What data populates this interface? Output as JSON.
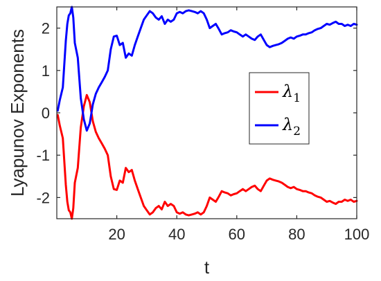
{
  "chart_data": {
    "type": "line",
    "title": "",
    "xlabel": "t",
    "ylabel": "Lyapunov Exponents",
    "xlim": [
      0,
      100
    ],
    "ylim": [
      -2.5,
      2.5
    ],
    "xticks": [
      20,
      40,
      60,
      80,
      100
    ],
    "yticks": [
      -2,
      -1,
      0,
      1,
      2
    ],
    "grid": false,
    "legend_position": "center-right",
    "series": [
      {
        "name": "λ1",
        "label_base": "λ",
        "label_sub": "1",
        "color": "#ff0000",
        "x": [
          0.3,
          1,
          2,
          3,
          3.5,
          4,
          4.5,
          5,
          5.5,
          6,
          7,
          8,
          9,
          10,
          11,
          12,
          13,
          14,
          15,
          16,
          17,
          18,
          19,
          20,
          21,
          22,
          23,
          24,
          25,
          26,
          27,
          28,
          29,
          30,
          31,
          32,
          33,
          34,
          35,
          36,
          37,
          38,
          39,
          40,
          41,
          42,
          43,
          44,
          45,
          46,
          47,
          48,
          49,
          50,
          51,
          52,
          53,
          54,
          55,
          56,
          57,
          58,
          59,
          60,
          61,
          62,
          63,
          64,
          65,
          66,
          67,
          68,
          69,
          70,
          71,
          72,
          73,
          74,
          75,
          76,
          77,
          78,
          79,
          80,
          81,
          82,
          83,
          84,
          85,
          86,
          87,
          88,
          89,
          90,
          91,
          92,
          93,
          94,
          95,
          96,
          97,
          98,
          99,
          100
        ],
        "y": [
          -0.05,
          -0.3,
          -0.6,
          -1.7,
          -2.1,
          -2.3,
          -2.35,
          -2.5,
          -2.25,
          -1.65,
          -1.3,
          -0.35,
          0.15,
          0.42,
          0.25,
          -0.2,
          -0.45,
          -0.6,
          -0.72,
          -0.85,
          -1.0,
          -1.5,
          -1.8,
          -1.82,
          -1.6,
          -1.65,
          -1.3,
          -1.4,
          -1.35,
          -1.6,
          -1.8,
          -2.0,
          -2.2,
          -2.3,
          -2.4,
          -2.35,
          -2.25,
          -2.2,
          -2.28,
          -2.1,
          -2.2,
          -2.15,
          -2.2,
          -2.35,
          -2.38,
          -2.35,
          -2.4,
          -2.42,
          -2.4,
          -2.38,
          -2.35,
          -2.4,
          -2.35,
          -2.2,
          -2.0,
          -2.05,
          -2.1,
          -1.98,
          -1.85,
          -1.88,
          -1.9,
          -1.95,
          -1.92,
          -1.9,
          -1.85,
          -1.8,
          -1.85,
          -1.8,
          -1.75,
          -1.72,
          -1.8,
          -1.85,
          -1.72,
          -1.6,
          -1.55,
          -1.58,
          -1.6,
          -1.62,
          -1.65,
          -1.7,
          -1.75,
          -1.78,
          -1.75,
          -1.8,
          -1.82,
          -1.85,
          -1.85,
          -1.88,
          -1.9,
          -1.95,
          -1.98,
          -2.0,
          -2.05,
          -2.1,
          -2.08,
          -2.12,
          -2.15,
          -2.1,
          -2.1,
          -2.05,
          -2.08,
          -2.05,
          -2.1,
          -2.08
        ]
      },
      {
        "name": "λ2",
        "label_base": "λ",
        "label_sub": "2",
        "color": "#0000ff",
        "x": [
          0.3,
          1,
          2,
          3,
          3.5,
          4,
          4.5,
          5,
          5.5,
          6,
          7,
          8,
          9,
          10,
          11,
          12,
          13,
          14,
          15,
          16,
          17,
          18,
          19,
          20,
          21,
          22,
          23,
          24,
          25,
          26,
          27,
          28,
          29,
          30,
          31,
          32,
          33,
          34,
          35,
          36,
          37,
          38,
          39,
          40,
          41,
          42,
          43,
          44,
          45,
          46,
          47,
          48,
          49,
          50,
          51,
          52,
          53,
          54,
          55,
          56,
          57,
          58,
          59,
          60,
          61,
          62,
          63,
          64,
          65,
          66,
          67,
          68,
          69,
          70,
          71,
          72,
          73,
          74,
          75,
          76,
          77,
          78,
          79,
          80,
          81,
          82,
          83,
          84,
          85,
          86,
          87,
          88,
          89,
          90,
          91,
          92,
          93,
          94,
          95,
          96,
          97,
          98,
          99,
          100
        ],
        "y": [
          0.05,
          0.3,
          0.6,
          1.7,
          2.1,
          2.3,
          2.35,
          2.5,
          2.25,
          1.65,
          1.3,
          0.35,
          -0.15,
          -0.42,
          -0.25,
          0.2,
          0.45,
          0.6,
          0.72,
          0.85,
          1.0,
          1.5,
          1.8,
          1.82,
          1.6,
          1.65,
          1.3,
          1.4,
          1.35,
          1.6,
          1.8,
          2.0,
          2.2,
          2.3,
          2.4,
          2.35,
          2.25,
          2.2,
          2.28,
          2.1,
          2.2,
          2.15,
          2.2,
          2.35,
          2.38,
          2.35,
          2.4,
          2.42,
          2.4,
          2.38,
          2.35,
          2.4,
          2.35,
          2.2,
          2.0,
          2.05,
          2.1,
          1.98,
          1.85,
          1.88,
          1.9,
          1.95,
          1.92,
          1.9,
          1.85,
          1.8,
          1.85,
          1.8,
          1.75,
          1.72,
          1.8,
          1.85,
          1.72,
          1.6,
          1.55,
          1.58,
          1.6,
          1.62,
          1.65,
          1.7,
          1.75,
          1.78,
          1.75,
          1.8,
          1.82,
          1.85,
          1.85,
          1.88,
          1.9,
          1.95,
          1.98,
          2.0,
          2.05,
          2.1,
          2.08,
          2.12,
          2.15,
          2.1,
          2.1,
          2.05,
          2.08,
          2.05,
          2.1,
          2.08
        ]
      }
    ]
  }
}
